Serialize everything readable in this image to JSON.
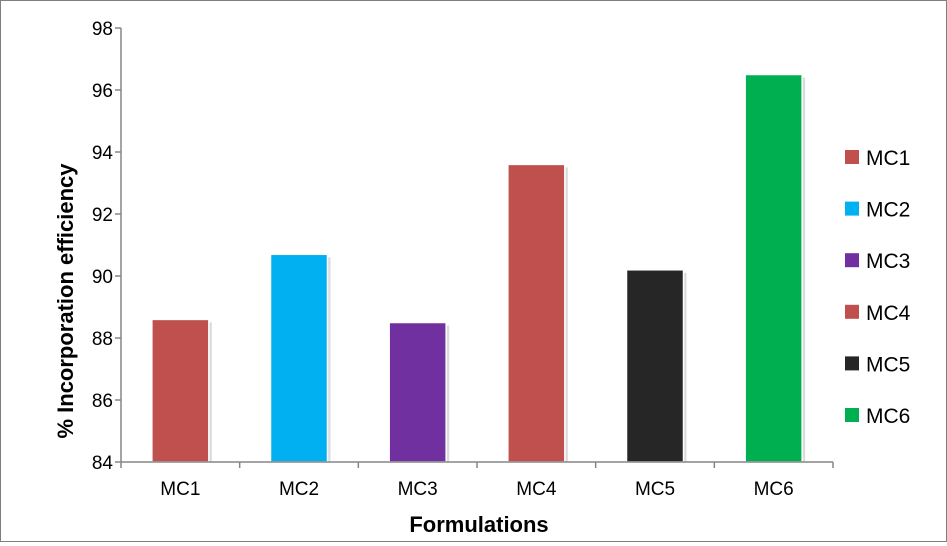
{
  "chart_data": {
    "type": "bar",
    "title": "",
    "xlabel": "Formulations",
    "ylabel": "% Incorporation efficiency",
    "ylim": [
      84,
      98
    ],
    "yticks": [
      84,
      86,
      88,
      90,
      92,
      94,
      96,
      98
    ],
    "grid": false,
    "legend_position": "right",
    "categories": [
      "MC1",
      "MC2",
      "MC3",
      "MC4",
      "MC5",
      "MC6"
    ],
    "values": [
      88.6,
      90.7,
      88.5,
      93.6,
      90.2,
      96.5
    ],
    "colors": [
      "#c0504d",
      "#00b0f0",
      "#7030a0",
      "#c0504d",
      "#262626",
      "#00b050"
    ],
    "legend": [
      "MC1",
      "MC2",
      "MC3",
      "MC4",
      "MC5",
      "MC6"
    ]
  }
}
